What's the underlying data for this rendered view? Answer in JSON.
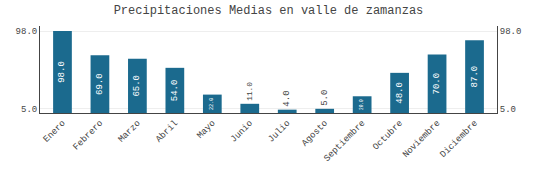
{
  "chart_data": {
    "type": "bar",
    "title": "Precipitaciones Medias en valle de zamanzas",
    "categories": [
      "Enero",
      "Febrero",
      "Marzo",
      "Abril",
      "Mayo",
      "Junio",
      "Julio",
      "Agosto",
      "Septiembre",
      "Octubre",
      "Noviembre",
      "Diciembre"
    ],
    "values": [
      98.0,
      69.0,
      65.0,
      54.0,
      22.0,
      11.0,
      4.0,
      5.0,
      20.0,
      48.0,
      70.0,
      87.0
    ],
    "value_labels": [
      "98.0",
      "69.0",
      "65.0",
      "54.0",
      "22.0",
      "11.0",
      "4.0",
      "5.0",
      "20.0",
      "48.0",
      "70.0",
      "87.0"
    ],
    "data_labels": true,
    "color": "#1b6a8e",
    "ylim": [
      0,
      104
    ],
    "yticks": [
      {
        "value": 5.0,
        "label": "5.0"
      },
      {
        "value": 98.0,
        "label": "98.0"
      }
    ],
    "y2lim": [
      0,
      104
    ],
    "y2ticks": [
      {
        "value": 5.0,
        "label": "5.0"
      },
      {
        "value": 98.0,
        "label": "98.0"
      }
    ],
    "grid": true
  }
}
